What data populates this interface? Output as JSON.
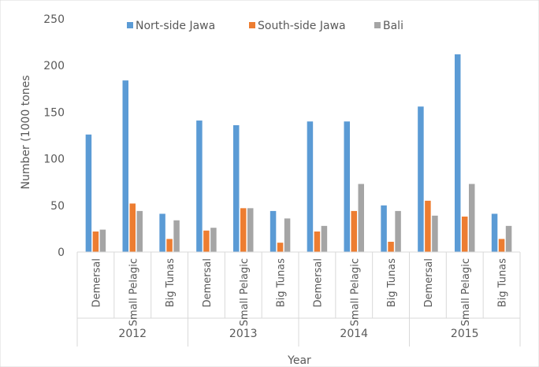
{
  "chart_data": {
    "type": "bar",
    "title": "",
    "xlabel": "Year",
    "ylabel": "Number (1000 tones",
    "ylim": [
      0,
      250
    ],
    "yticks": [
      0,
      50,
      100,
      150,
      200,
      250
    ],
    "grid": false,
    "legend_position": "top",
    "groups": [
      {
        "year": "2012",
        "categories": [
          "Demersal",
          "Small Pelagic",
          "Big Tunas"
        ]
      },
      {
        "year": "2013",
        "categories": [
          "Demersal",
          "Small Pelagic",
          "Big Tunas"
        ]
      },
      {
        "year": "2014",
        "categories": [
          "Demersal",
          "Small Pelagic",
          "Big Tunas"
        ]
      },
      {
        "year": "2015",
        "categories": [
          "Demersal",
          "Small Pelagic",
          "Big Tunas"
        ]
      }
    ],
    "series": [
      {
        "name": "Nort-side Jawa",
        "color": "#5b9bd5",
        "values": [
          126,
          184,
          41,
          141,
          136,
          44,
          140,
          140,
          50,
          156,
          212,
          41
        ]
      },
      {
        "name": "South-side Jawa",
        "color": "#ed7d31",
        "values": [
          22,
          52,
          14,
          23,
          47,
          10,
          22,
          44,
          11,
          55,
          38,
          14
        ]
      },
      {
        "name": "Bali",
        "color": "#a5a5a5",
        "values": [
          24,
          44,
          34,
          26,
          47,
          36,
          28,
          73,
          44,
          39,
          73,
          28
        ]
      }
    ]
  }
}
